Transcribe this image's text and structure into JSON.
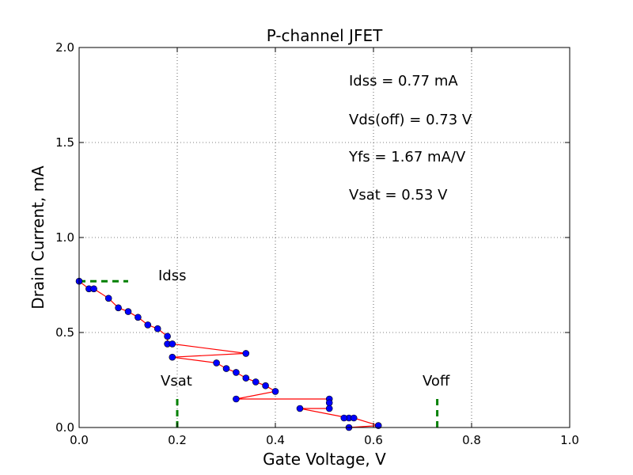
{
  "chart_data": {
    "type": "line",
    "title": "P-channel JFET",
    "xlabel": "Gate Voltage, V",
    "ylabel": "Drain Current, mA",
    "xlim": [
      0.0,
      1.0
    ],
    "ylim": [
      0.0,
      2.0
    ],
    "xticks": [
      "0.0",
      "0.2",
      "0.4",
      "0.6",
      "0.8",
      "1.0"
    ],
    "yticks": [
      "0.0",
      "0.5",
      "1.0",
      "1.5",
      "2.0"
    ],
    "grid": true,
    "series": [
      {
        "color": "#ff0000",
        "marker_color": "#0000ff",
        "x": [
          0.0,
          0.02,
          0.03,
          0.06,
          0.08,
          0.1,
          0.12,
          0.14,
          0.16,
          0.18,
          0.18,
          0.19,
          0.34,
          0.19,
          0.28,
          0.3,
          0.32,
          0.34,
          0.36,
          0.38,
          0.4,
          0.32,
          0.51,
          0.51,
          0.51,
          0.45,
          0.55,
          0.54,
          0.56,
          0.61,
          0.55
        ],
        "y": [
          0.77,
          0.73,
          0.73,
          0.68,
          0.63,
          0.61,
          0.58,
          0.54,
          0.52,
          0.48,
          0.44,
          0.44,
          0.39,
          0.37,
          0.34,
          0.31,
          0.29,
          0.26,
          0.24,
          0.22,
          0.19,
          0.15,
          0.15,
          0.13,
          0.1,
          0.1,
          0.05,
          0.05,
          0.05,
          0.01,
          0.0
        ]
      }
    ],
    "reference_lines": [
      {
        "label": "Idss",
        "orientation": "horizontal",
        "value": 0.77,
        "from": 0.0,
        "to": 0.1,
        "color": "#008000"
      },
      {
        "label": "Vsat",
        "orientation": "vertical",
        "value": 0.2,
        "from": 0.0,
        "to": 0.17,
        "color": "#008000"
      },
      {
        "label": "Voff",
        "orientation": "vertical",
        "value": 0.73,
        "from": 0.0,
        "to": 0.17,
        "color": "#008000"
      }
    ],
    "annotations": [
      "Idss = 0.77 mA",
      "Vds(off) = 0.73 V",
      "Yfs = 1.67 mA/V",
      "Vsat = 0.53 V"
    ]
  }
}
